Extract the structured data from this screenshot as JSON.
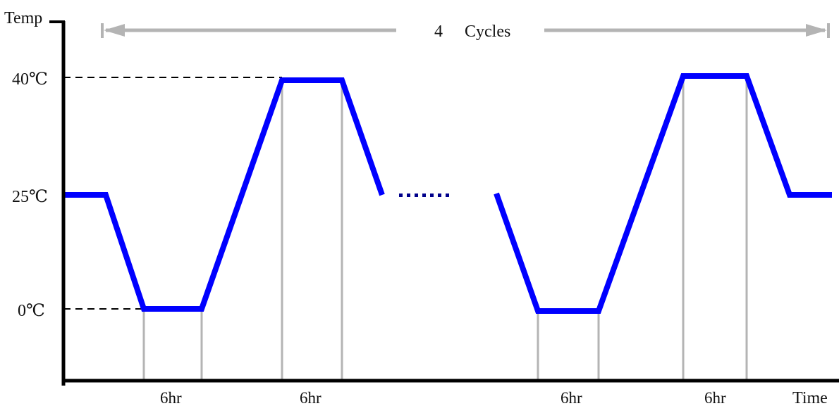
{
  "axes": {
    "y_label": "Temp",
    "x_label": "Time"
  },
  "temperature_levels": {
    "high": "40℃",
    "mid": "25℃",
    "low": "0℃"
  },
  "cycles_banner": {
    "count": "4",
    "label": "Cycles"
  },
  "durations": [
    "6hr",
    "6hr",
    "6hr",
    "6hr"
  ],
  "colors": {
    "profile_line": "#0000ff",
    "ellipsis_dots": "#00008b",
    "guide_lines": "#b4b4b4",
    "axis": "#000000"
  }
}
